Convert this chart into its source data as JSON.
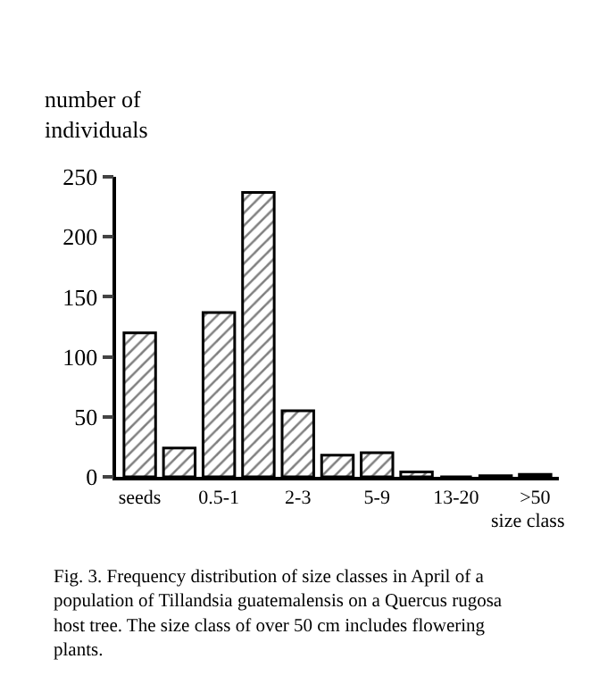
{
  "chart_data": {
    "type": "bar",
    "categories": [
      "seeds",
      null,
      "0.5-1",
      null,
      "2-3",
      null,
      "5-9",
      null,
      "13-20",
      null,
      ">50"
    ],
    "values": [
      120,
      24,
      137,
      237,
      55,
      18,
      20,
      4,
      0,
      1,
      2
    ],
    "color": "#000000",
    "ylim": [
      0,
      250
    ],
    "yticks": [
      0,
      50,
      100,
      150,
      200,
      250
    ],
    "ylabel": "number of individuals",
    "xlabel": "size class",
    "annotations": [
      "Fig. 3. Frequency distribution of size classes in April of a population of Tillandsia guatemalensis on a Quercus rugosa host tree. The size class of over 50 cm includes flowering plants."
    ]
  }
}
